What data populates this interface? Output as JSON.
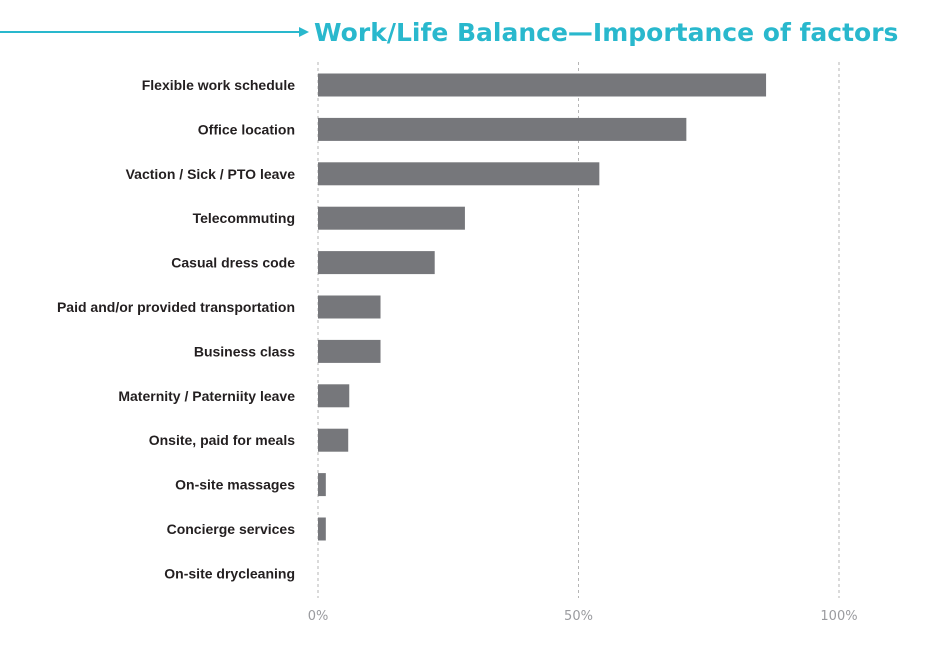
{
  "chart_data": {
    "type": "bar",
    "orientation": "horizontal",
    "title": "Work/Life Balance—Importance of factors",
    "xlabel": "",
    "ylabel": "",
    "categories": [
      "Flexible work schedule",
      "Office location",
      "Vaction / Sick / PTO leave",
      "Telecommuting",
      "Casual dress code",
      "Paid and/or provided transportation",
      "Business class",
      "Maternity / Paterniity leave",
      "Onsite, paid for meals",
      "On-site massages",
      "Concierge services",
      "On-site drycleaning"
    ],
    "values": [
      86,
      70.7,
      54,
      28.2,
      22.4,
      12,
      12,
      6,
      5.8,
      1.5,
      1.5,
      0
    ],
    "xlim": [
      0,
      100
    ],
    "ticks": [
      {
        "value": 0,
        "label": "0%"
      },
      {
        "value": 50,
        "label": "50%"
      },
      {
        "value": 100,
        "label": "100%"
      }
    ],
    "grid": true,
    "legend": "none",
    "colors": {
      "bar": "#76777b",
      "title": "#29b8cd",
      "arrow": "#29b8cd",
      "label": "#231f20",
      "tick": "#9a9b9f",
      "grid": "#b5b5b5"
    }
  }
}
